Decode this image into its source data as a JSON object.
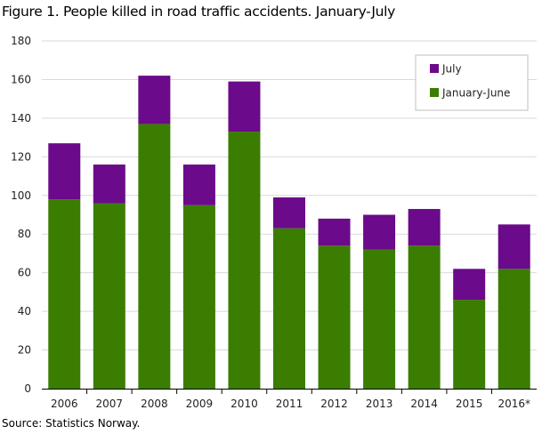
{
  "title": "Figure 1. People killed in road traffic accidents. January-July",
  "source": "Source: Statistics Norway.",
  "colors": {
    "january_june": "#3a7d00",
    "july": "#6b0a8a",
    "grid": "#d9d9d9",
    "axis": "#000000"
  },
  "chart_data": {
    "type": "bar",
    "stacked": true,
    "categories": [
      "2006",
      "2007",
      "2008",
      "2009",
      "2010",
      "2011",
      "2012",
      "2013",
      "2014",
      "2015",
      "2016*"
    ],
    "series": [
      {
        "name": "January-June",
        "color": "#3a7d00",
        "values": [
          98,
          96,
          137,
          95,
          133,
          83,
          74,
          72,
          74,
          46,
          62
        ]
      },
      {
        "name": "July",
        "color": "#6b0a8a",
        "values": [
          29,
          20,
          25,
          21,
          26,
          16,
          14,
          18,
          19,
          16,
          23
        ]
      }
    ],
    "ylim": [
      0,
      180
    ],
    "yticks": [
      0,
      20,
      40,
      60,
      80,
      100,
      120,
      140,
      160,
      180
    ],
    "grid": true,
    "legend": {
      "placement": "top-right",
      "order": [
        "July",
        "January-June"
      ]
    }
  }
}
